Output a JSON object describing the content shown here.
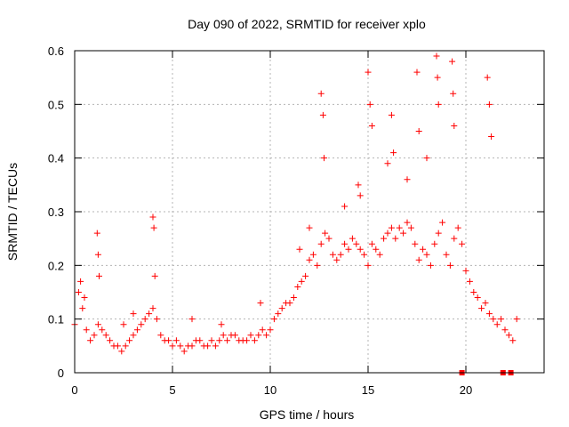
{
  "chart_data": {
    "type": "scatter",
    "title": "Day 090 of 2022, SRMTID for receiver xplo",
    "xlabel": "GPS time / hours",
    "ylabel": "SRMTID / TECUs",
    "xlim": [
      0,
      24
    ],
    "ylim": [
      0,
      0.6
    ],
    "x_ticks": [
      0,
      5,
      10,
      15,
      20
    ],
    "x_tick_labels": [
      "0",
      "5",
      "10",
      "15",
      "20"
    ],
    "y_ticks": [
      0,
      0.1,
      0.2,
      0.3,
      0.4,
      0.5,
      0.6
    ],
    "y_tick_labels": [
      "0",
      "0.1",
      "0.2",
      "0.3",
      "0.4",
      "0.5",
      "0.6"
    ],
    "grid": true,
    "colors": {
      "series": "#ff0000",
      "grid": "#b4b4b4",
      "axis": "#000000"
    },
    "series": [
      {
        "name": "SRMTID",
        "marker": "plus",
        "x": [
          0.0,
          0.2,
          0.4,
          0.6,
          0.8,
          1.0,
          1.2,
          1.4,
          1.6,
          1.8,
          2.0,
          2.2,
          2.4,
          2.6,
          2.8,
          3.0,
          3.2,
          3.4,
          3.6,
          3.8,
          4.0,
          4.2,
          4.4,
          4.6,
          4.8,
          5.0,
          5.2,
          5.4,
          5.6,
          5.8,
          6.0,
          6.2,
          6.4,
          6.6,
          6.8,
          7.0,
          7.2,
          7.4,
          7.6,
          7.8,
          8.0,
          8.2,
          8.4,
          8.6,
          8.8,
          9.0,
          9.2,
          9.4,
          9.6,
          9.8,
          10.0,
          10.2,
          10.4,
          10.6,
          10.8,
          11.0,
          11.2,
          11.4,
          11.6,
          11.8,
          12.0,
          12.2,
          12.4,
          12.6,
          12.8,
          13.0,
          13.2,
          13.4,
          13.6,
          13.8,
          14.0,
          14.2,
          14.4,
          14.6,
          14.8,
          15.0,
          15.2,
          15.4,
          15.6,
          15.8,
          16.0,
          16.2,
          16.4,
          16.6,
          16.8,
          17.0,
          17.2,
          17.4,
          17.6,
          17.8,
          18.0,
          18.2,
          18.4,
          18.6,
          18.8,
          19.0,
          19.2,
          19.4,
          19.6,
          19.8,
          20.0,
          20.2,
          20.4,
          20.6,
          20.8,
          21.0,
          21.2,
          21.4,
          21.6,
          21.8,
          22.0,
          22.2,
          22.4,
          22.6,
          1.15,
          1.2,
          1.25,
          4.0,
          4.05,
          4.1,
          12.6,
          12.7,
          12.75,
          15.0,
          15.1,
          15.2,
          16.2,
          16.3,
          17.5,
          17.6,
          18.5,
          18.55,
          18.6,
          19.3,
          19.35,
          19.4,
          21.1,
          21.2,
          21.3,
          14.5,
          14.6,
          13.8,
          16.0,
          17.0,
          18.0,
          11.5,
          12.0,
          9.5,
          7.5,
          6.0,
          3.0,
          2.5,
          0.3,
          0.5,
          19.8,
          21.9,
          22.3
        ],
        "y": [
          0.09,
          0.15,
          0.12,
          0.08,
          0.06,
          0.07,
          0.09,
          0.08,
          0.07,
          0.06,
          0.05,
          0.05,
          0.04,
          0.05,
          0.06,
          0.07,
          0.08,
          0.09,
          0.1,
          0.11,
          0.12,
          0.1,
          0.07,
          0.06,
          0.06,
          0.05,
          0.06,
          0.05,
          0.04,
          0.05,
          0.05,
          0.06,
          0.06,
          0.05,
          0.05,
          0.06,
          0.05,
          0.06,
          0.07,
          0.06,
          0.07,
          0.07,
          0.06,
          0.06,
          0.06,
          0.07,
          0.06,
          0.07,
          0.08,
          0.07,
          0.08,
          0.1,
          0.11,
          0.12,
          0.13,
          0.13,
          0.14,
          0.16,
          0.17,
          0.18,
          0.21,
          0.22,
          0.2,
          0.24,
          0.26,
          0.25,
          0.22,
          0.21,
          0.22,
          0.24,
          0.23,
          0.25,
          0.24,
          0.23,
          0.22,
          0.2,
          0.24,
          0.23,
          0.22,
          0.25,
          0.26,
          0.27,
          0.25,
          0.27,
          0.26,
          0.28,
          0.27,
          0.24,
          0.21,
          0.23,
          0.22,
          0.2,
          0.24,
          0.26,
          0.28,
          0.22,
          0.2,
          0.25,
          0.27,
          0.24,
          0.19,
          0.17,
          0.15,
          0.14,
          0.12,
          0.13,
          0.11,
          0.1,
          0.09,
          0.1,
          0.08,
          0.07,
          0.06,
          0.1,
          0.26,
          0.22,
          0.18,
          0.29,
          0.27,
          0.18,
          0.52,
          0.48,
          0.4,
          0.56,
          0.5,
          0.46,
          0.48,
          0.41,
          0.56,
          0.45,
          0.59,
          0.55,
          0.5,
          0.58,
          0.52,
          0.46,
          0.55,
          0.5,
          0.44,
          0.35,
          0.33,
          0.31,
          0.39,
          0.36,
          0.4,
          0.23,
          0.27,
          0.13,
          0.09,
          0.1,
          0.11,
          0.09,
          0.17,
          0.14,
          0.0,
          0.0,
          0.0
        ]
      }
    ]
  }
}
